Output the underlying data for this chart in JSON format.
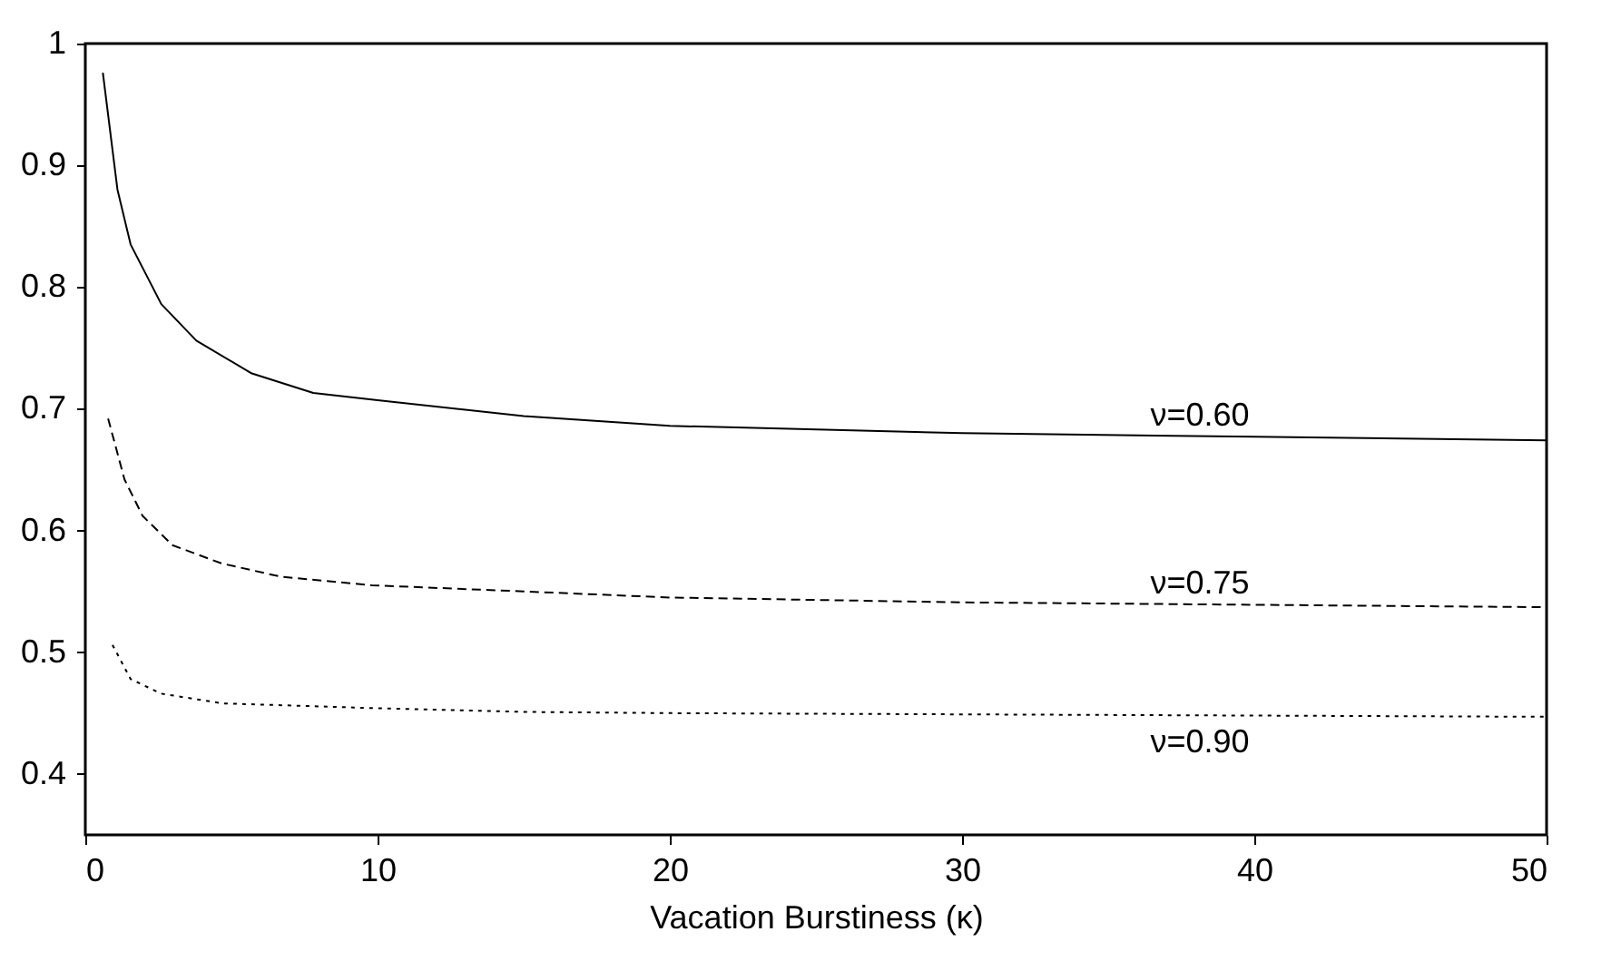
{
  "chart_data": {
    "type": "line",
    "xlabel": "Vacation Burstiness (κ)",
    "xlim": [
      0,
      50
    ],
    "xticks": [
      0,
      10,
      20,
      30,
      40,
      50
    ],
    "ylim": [
      0.35,
      1
    ],
    "yticks": [
      0.4,
      0.5,
      0.6,
      0.7,
      0.8,
      0.9,
      1
    ],
    "series": [
      {
        "name": "ν=0.60",
        "color": "#000000",
        "line_style": "solid",
        "x": [
          0.6,
          1.1,
          1.55,
          2.6,
          3.8,
          5.7,
          7.8,
          10,
          15,
          20,
          30,
          40,
          50
        ],
        "values": [
          0.976,
          0.88,
          0.835,
          0.786,
          0.756,
          0.729,
          0.713,
          0.707,
          0.694,
          0.686,
          0.68,
          0.677,
          0.674
        ]
      },
      {
        "name": "ν=0.75",
        "color": "#000000",
        "line_style": "dashed",
        "x": [
          0.78,
          1.34,
          1.96,
          2.98,
          4.66,
          6.7,
          9.8,
          15,
          20,
          30,
          40,
          50
        ],
        "values": [
          0.692,
          0.642,
          0.612,
          0.588,
          0.573,
          0.562,
          0.555,
          0.55,
          0.545,
          0.541,
          0.539,
          0.537
        ]
      },
      {
        "name": "ν=0.90",
        "color": "#000000",
        "line_style": "dotted",
        "x": [
          0.93,
          1.55,
          2.6,
          4.7,
          10,
          15,
          20,
          30,
          40,
          50
        ],
        "values": [
          0.506,
          0.478,
          0.466,
          0.458,
          0.454,
          0.451,
          0.45,
          0.449,
          0.448,
          0.447
        ]
      }
    ]
  }
}
